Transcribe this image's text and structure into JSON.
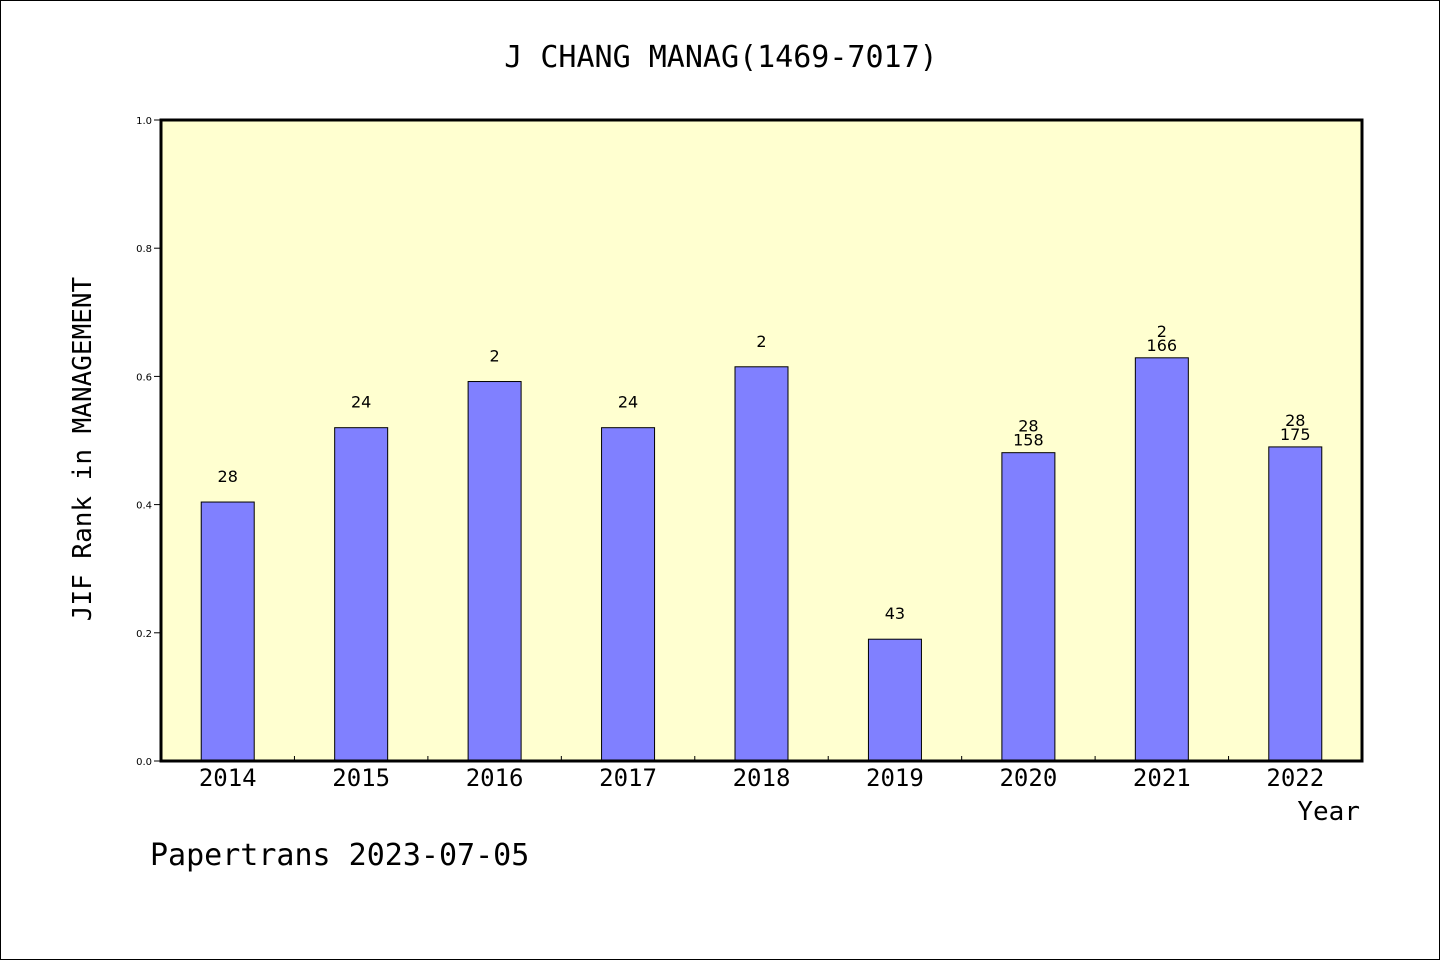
{
  "chart_data": {
    "type": "bar",
    "title": "J CHANG MANAG(1469-7017)",
    "xlabel": "Year",
    "ylabel": "JIF Rank in MANAGEMENT",
    "footer": "Papertrans 2023-07-05",
    "ylim": [
      0,
      1.0
    ],
    "yticks": [
      "0.0",
      "0.2",
      "0.4",
      "0.6",
      "0.8",
      "1.0"
    ],
    "categories": [
      "2014",
      "2015",
      "2016",
      "2017",
      "2018",
      "2019",
      "2020",
      "2021",
      "2022"
    ],
    "values": [
      0.404,
      0.52,
      0.592,
      0.52,
      0.615,
      0.19,
      0.481,
      0.629,
      0.49
    ],
    "labels": [
      [
        "28"
      ],
      [
        "24"
      ],
      [
        "2"
      ],
      [
        "24"
      ],
      [
        "2"
      ],
      [
        "43"
      ],
      [
        "28",
        "158"
      ],
      [
        "2",
        "166"
      ],
      [
        "28",
        "175"
      ]
    ],
    "colors": {
      "plot_background": "#FFFFD0",
      "bar_fill": "#8080FF",
      "bar_stroke": "#000000"
    },
    "grid": false,
    "legend": "none"
  }
}
